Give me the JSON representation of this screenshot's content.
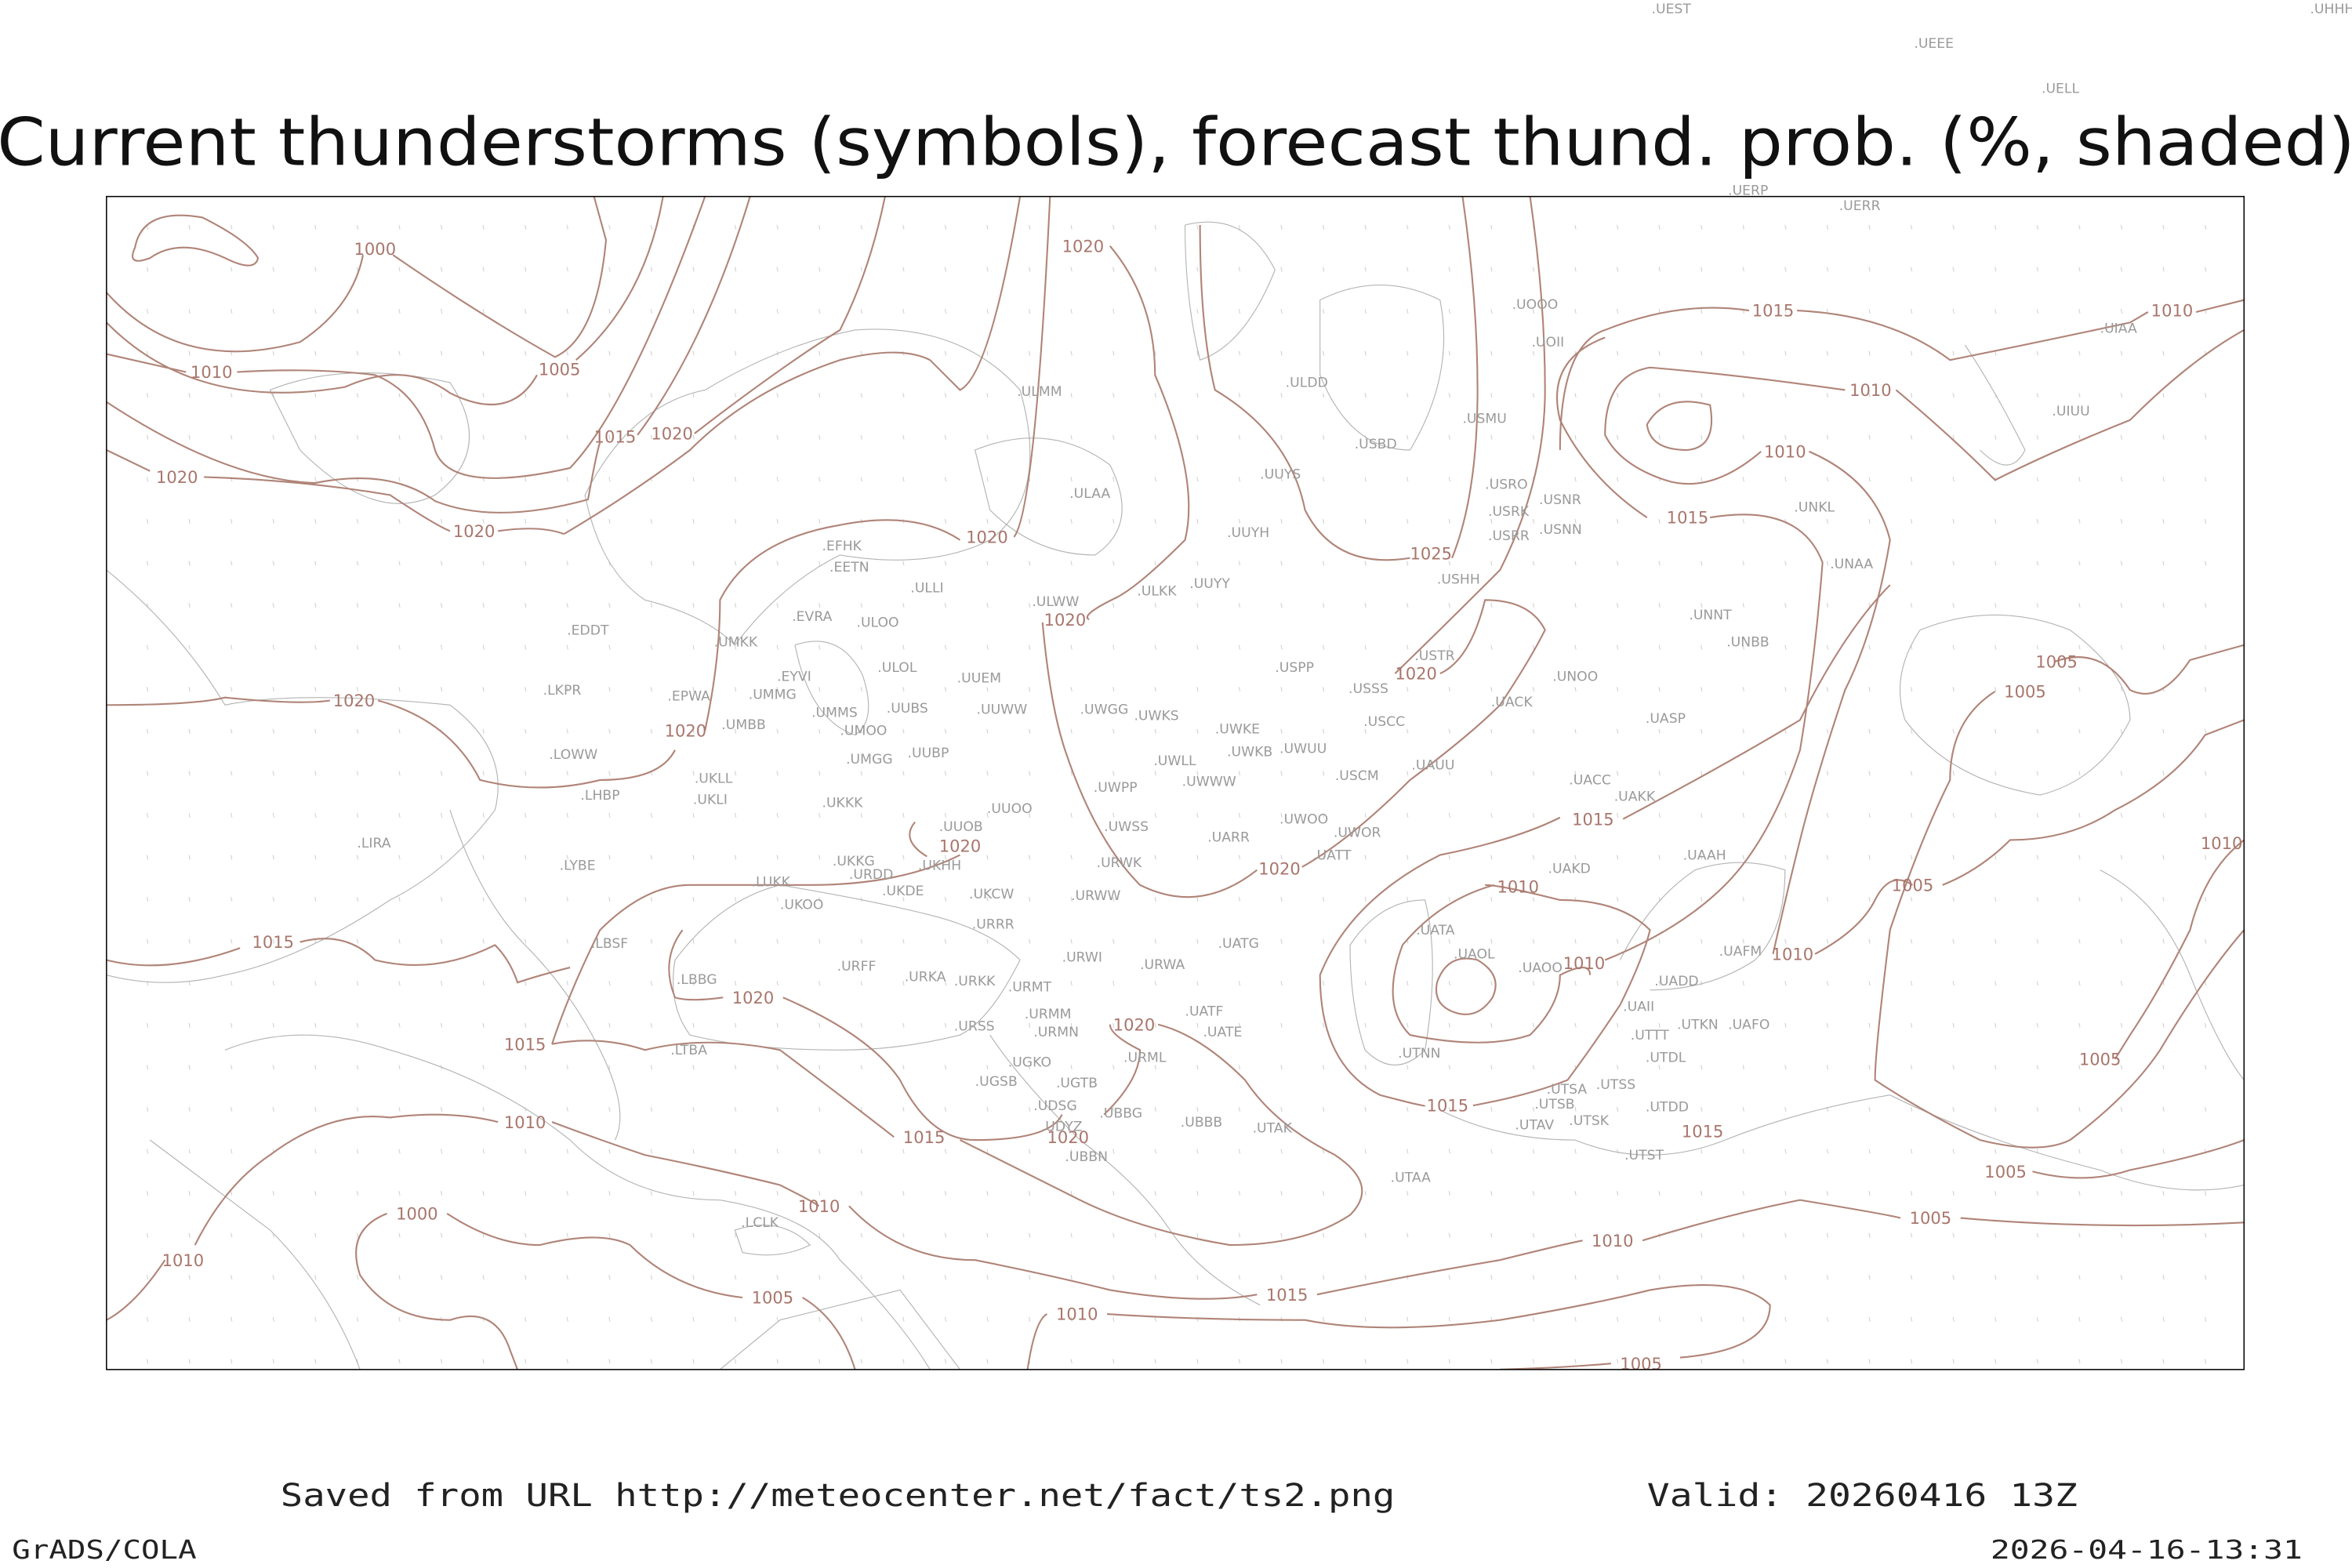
{
  "title": "Current thunderstorms (symbols), forecast thund. prob. (%, shaded)",
  "footer": {
    "saved_from": "Saved from URL http://meteocenter.net/fact/ts2.png",
    "valid": "Valid: 20260416 13Z",
    "software": "GrADS/COLA",
    "timestamp": "2026-04-16-13:31"
  },
  "colors": {
    "isobar": "#b08478",
    "coastline": "#b4b4b4",
    "station_label": "#9a9a9a",
    "frame": "#000000"
  },
  "isobar_labels": [
    "1000",
    "1010",
    "1005",
    "1015",
    "1020",
    "1020",
    "1020",
    "1020",
    "1015",
    "1010",
    "1010",
    "1010",
    "1015",
    "1025",
    "1020",
    "1020",
    "1020",
    "1005",
    "1005",
    "1020",
    "1020",
    "1015",
    "1020",
    "1020",
    "1010",
    "1005",
    "1010",
    "1015",
    "1010",
    "1010",
    "1020",
    "1020",
    "1015",
    "1005",
    "1020",
    "1015",
    "1010",
    "1015",
    "1015",
    "1005",
    "1000",
    "1010",
    "1010",
    "1005",
    "1010",
    "1015",
    "1005",
    "1010",
    "1005"
  ],
  "stations": [
    "UEST",
    "UHHH",
    "UEEE",
    "UELL",
    "UERP",
    "UERR",
    "UIAA",
    "UOOO",
    "UOII",
    "ULDD",
    "ULMM",
    "USBD",
    "USMU",
    "UIUU",
    "UUYS",
    "ULAA",
    "USRO",
    "USNR",
    "USRK",
    "UNKL",
    "USNN",
    "USRR",
    "UUYH",
    "USHH",
    "UNAA",
    "EFHK",
    "EETN",
    "ULLI",
    "UUYY",
    "ULKK",
    "EVRA",
    "ULOO",
    "ULWW",
    "EDDT",
    "UMKK",
    "UNNT",
    "UNBB",
    "ULOL",
    "USPP",
    "USTR",
    "UUEM",
    "EYVI",
    "UNOO",
    "USSS",
    "LKPR",
    "EPWA",
    "UMMG",
    "UUBS",
    "UUWW",
    "UWGG",
    "UWKS",
    "UMMS",
    "UMOO",
    "UACK",
    "UASP",
    "USCC",
    "UMBB",
    "UWKE",
    "UWLL",
    "UWKB",
    "UWUU",
    "UAUU",
    "LOWW",
    "LHBP",
    "UKLL",
    "UKLI",
    "UMGG",
    "UUBP",
    "UWPP",
    "UWWW",
    "USCM",
    "UACC",
    "UAKK",
    "UKKK",
    "UUOO",
    "UWOO",
    "UWOR",
    "UWSS",
    "UATT",
    "LIRA",
    "UUOB",
    "UKKG",
    "UKHH",
    "URDD",
    "URWK",
    "LYBE",
    "UAAH",
    "UARR",
    "LUKK",
    "UKDE",
    "UKCW",
    "UKOO",
    "URWW",
    "UAKD",
    "URRR",
    "LBSF",
    "UATG",
    "UATA",
    "UAOL",
    "UAOO",
    "UAFM",
    "URFF",
    "URKA",
    "URKK",
    "URWI",
    "URWA",
    "LBBG",
    "UADD",
    "URMT",
    "UAII",
    "URMM",
    "UATF",
    "UATE",
    "UTKN",
    "UAFO",
    "URSS",
    "URMN",
    "UTTT",
    "LTBA",
    "UTNN",
    "UTDL",
    "UGKO",
    "URML",
    "UGSB",
    "UGTB",
    "UTSA",
    "UTSS",
    "UTSB",
    "UTDD",
    "UDSG",
    "UBBG",
    "UDYZ",
    "UBBB",
    "UTAK",
    "UTAV",
    "UTSK",
    "UTST",
    "UBBN",
    "UTAA",
    "LCLK"
  ]
}
